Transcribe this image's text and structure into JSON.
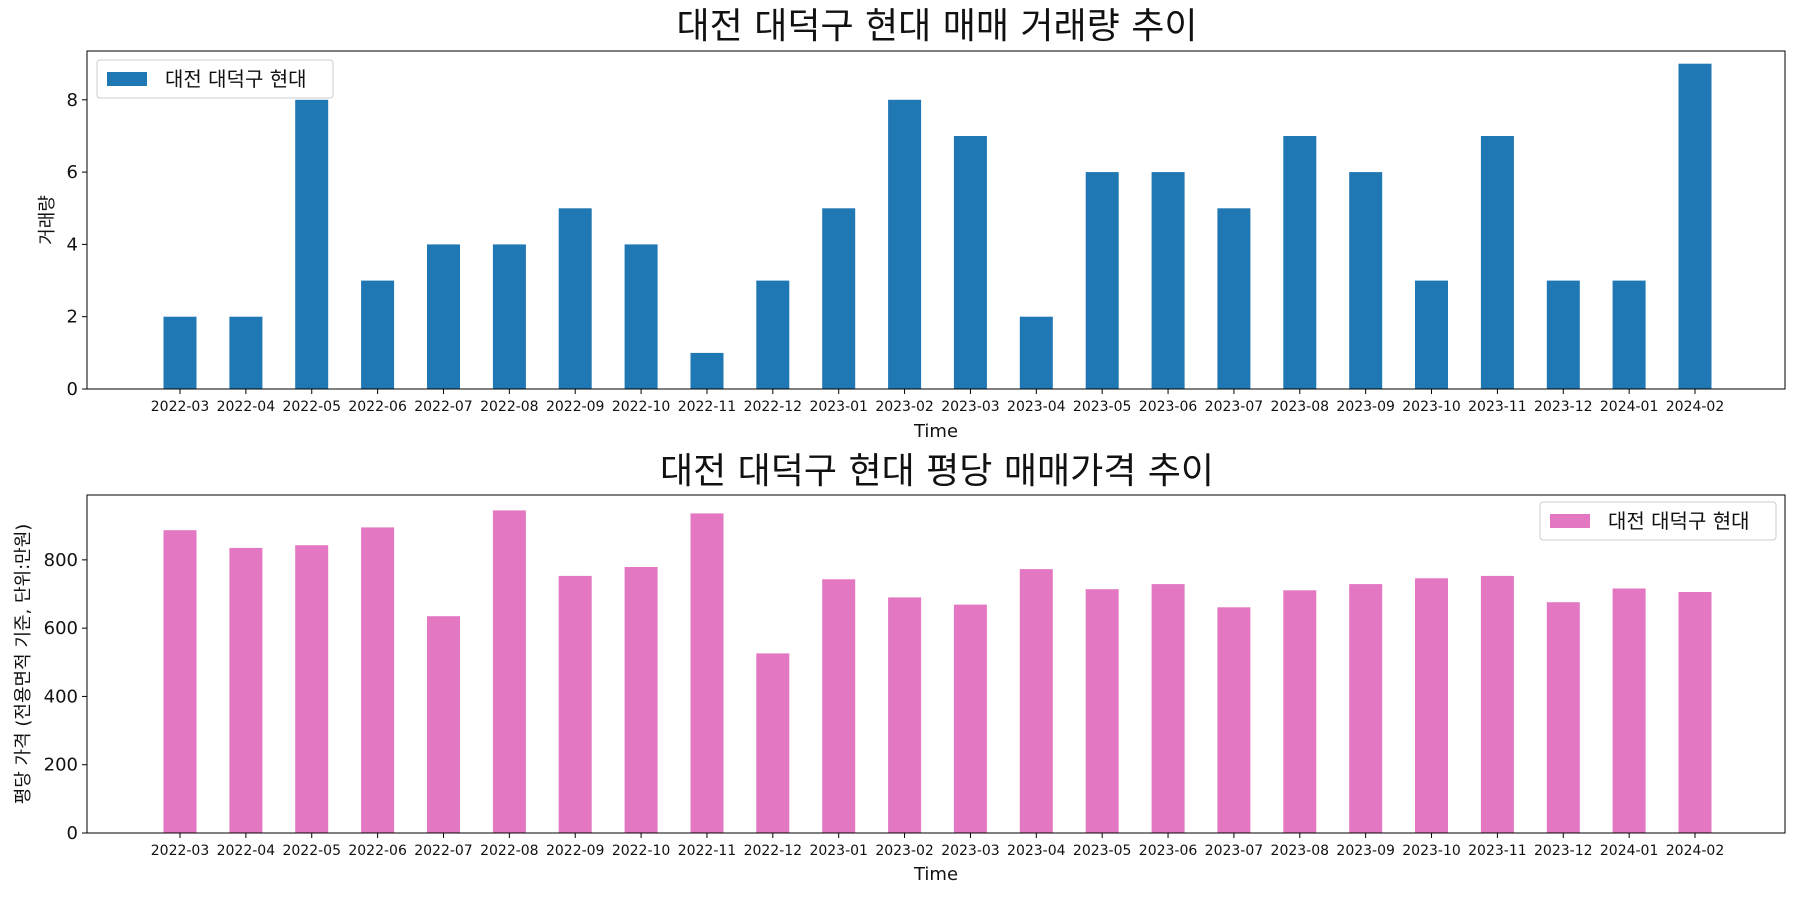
{
  "chart_data": [
    {
      "type": "bar",
      "title": "대전 대덕구 현대 매매 거래량 추이",
      "xlabel": "Time",
      "ylabel": "거래량",
      "ylim": [
        0,
        9.35
      ],
      "yticks": [
        0,
        2,
        4,
        6,
        8
      ],
      "legend": "top-left",
      "color": "#1f77b4",
      "categories": [
        "2022-03",
        "2022-04",
        "2022-05",
        "2022-06",
        "2022-07",
        "2022-08",
        "2022-09",
        "2022-10",
        "2022-11",
        "2022-12",
        "2023-01",
        "2023-02",
        "2023-03",
        "2023-04",
        "2023-05",
        "2023-06",
        "2023-07",
        "2023-08",
        "2023-09",
        "2023-10",
        "2023-11",
        "2023-12",
        "2024-01",
        "2024-02"
      ],
      "series": [
        {
          "name": "대전 대덕구 현대",
          "values": [
            2,
            2,
            8,
            3,
            4,
            4,
            5,
            4,
            1,
            3,
            5,
            8,
            7,
            2,
            6,
            6,
            5,
            7,
            6,
            3,
            7,
            3,
            3,
            9
          ]
        }
      ]
    },
    {
      "type": "bar",
      "title": "대전 대덕구 현대 평당 매매가격 추이",
      "xlabel": "Time",
      "ylabel": "평당 가격 (전용면적 기준, 단위:만원)",
      "ylim": [
        0,
        990
      ],
      "yticks": [
        0,
        200,
        400,
        600,
        800
      ],
      "legend": "top-right",
      "color": "#e377c2",
      "categories": [
        "2022-03",
        "2022-04",
        "2022-05",
        "2022-06",
        "2022-07",
        "2022-08",
        "2022-09",
        "2022-10",
        "2022-11",
        "2022-12",
        "2023-01",
        "2023-02",
        "2023-03",
        "2023-04",
        "2023-05",
        "2023-06",
        "2023-07",
        "2023-08",
        "2023-09",
        "2023-10",
        "2023-11",
        "2023-12",
        "2024-01",
        "2024-02"
      ],
      "series": [
        {
          "name": "대전 대덕구 현대",
          "values": [
            887,
            835,
            843,
            895,
            635,
            945,
            753,
            779,
            936,
            526,
            743,
            690,
            669,
            773,
            714,
            729,
            661,
            711,
            729,
            746,
            753,
            676,
            716,
            706
          ]
        }
      ]
    }
  ]
}
